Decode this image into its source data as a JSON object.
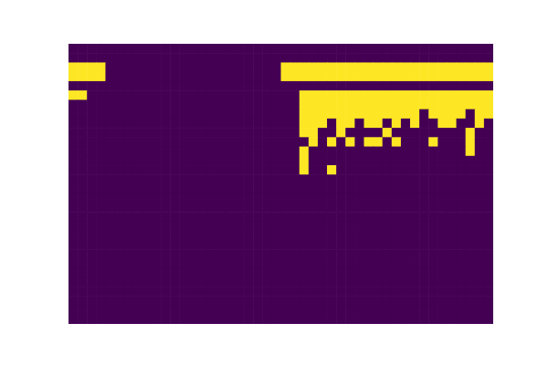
{
  "chart_data": {
    "type": "heatmap",
    "tick_labels": false,
    "zlim": [
      0,
      1
    ],
    "colors": [
      "#440154",
      "#fde725"
    ],
    "cells": [
      [
        0,
        0,
        0,
        0,
        0,
        0,
        0,
        0,
        0,
        0,
        0,
        0,
        0,
        0,
        0,
        0,
        0,
        0,
        0,
        0,
        0,
        0,
        0,
        0,
        0,
        0,
        0,
        0,
        0,
        0,
        0,
        0,
        0,
        0,
        0,
        0,
        0,
        0,
        0,
        0,
        0,
        0,
        0,
        0,
        0,
        0
      ],
      [
        0,
        0,
        0,
        0,
        0,
        0,
        0,
        0,
        0,
        0,
        0,
        0,
        0,
        0,
        0,
        0,
        0,
        0,
        0,
        0,
        0,
        0,
        0,
        0,
        0,
        0,
        0,
        0,
        0,
        0,
        0,
        0,
        0,
        0,
        0,
        0,
        0,
        0,
        0,
        0,
        0,
        0,
        0,
        0,
        0,
        0
      ],
      [
        1,
        1,
        1,
        1,
        0,
        0,
        0,
        0,
        0,
        0,
        0,
        0,
        0,
        0,
        0,
        0,
        0,
        0,
        0,
        0,
        0,
        0,
        0,
        1,
        1,
        1,
        1,
        1,
        1,
        1,
        1,
        1,
        1,
        1,
        1,
        1,
        1,
        1,
        1,
        1,
        1,
        1,
        1,
        1,
        1,
        1
      ],
      [
        1,
        1,
        1,
        1,
        0,
        0,
        0,
        0,
        0,
        0,
        0,
        0,
        0,
        0,
        0,
        0,
        0,
        0,
        0,
        0,
        0,
        0,
        0,
        1,
        1,
        1,
        1,
        1,
        1,
        1,
        1,
        1,
        1,
        1,
        1,
        1,
        1,
        1,
        1,
        1,
        1,
        1,
        1,
        1,
        1,
        1
      ],
      [
        0,
        0,
        0,
        0,
        0,
        0,
        0,
        0,
        0,
        0,
        0,
        0,
        0,
        0,
        0,
        0,
        0,
        0,
        0,
        0,
        0,
        0,
        0,
        0,
        0,
        0,
        0,
        0,
        0,
        0,
        0,
        0,
        0,
        0,
        0,
        0,
        0,
        0,
        0,
        0,
        0,
        0,
        0,
        0,
        0,
        0
      ],
      [
        1,
        1,
        0,
        0,
        0,
        0,
        0,
        0,
        0,
        0,
        0,
        0,
        0,
        0,
        0,
        0,
        0,
        0,
        0,
        0,
        0,
        0,
        0,
        0,
        0,
        1,
        1,
        1,
        1,
        1,
        1,
        1,
        1,
        1,
        1,
        1,
        1,
        1,
        1,
        1,
        1,
        1,
        1,
        1,
        1,
        1
      ],
      [
        0,
        0,
        0,
        0,
        0,
        0,
        0,
        0,
        0,
        0,
        0,
        0,
        0,
        0,
        0,
        0,
        0,
        0,
        0,
        0,
        0,
        0,
        0,
        0,
        0,
        1,
        1,
        1,
        1,
        1,
        1,
        1,
        1,
        1,
        1,
        1,
        1,
        1,
        1,
        1,
        1,
        1,
        1,
        1,
        1,
        1
      ],
      [
        0,
        0,
        0,
        0,
        0,
        0,
        0,
        0,
        0,
        0,
        0,
        0,
        0,
        0,
        0,
        0,
        0,
        0,
        0,
        0,
        0,
        0,
        0,
        0,
        0,
        1,
        1,
        1,
        1,
        1,
        1,
        1,
        1,
        1,
        1,
        1,
        1,
        1,
        0,
        1,
        1,
        1,
        1,
        0,
        1,
        1
      ],
      [
        0,
        0,
        0,
        0,
        0,
        0,
        0,
        0,
        0,
        0,
        0,
        0,
        0,
        0,
        0,
        0,
        0,
        0,
        0,
        0,
        0,
        0,
        0,
        0,
        0,
        1,
        1,
        1,
        0,
        1,
        1,
        0,
        1,
        1,
        0,
        1,
        0,
        1,
        0,
        0,
        1,
        1,
        0,
        0,
        1,
        0
      ],
      [
        0,
        0,
        0,
        0,
        0,
        0,
        0,
        0,
        0,
        0,
        0,
        0,
        0,
        0,
        0,
        0,
        0,
        0,
        0,
        0,
        0,
        0,
        0,
        0,
        0,
        1,
        1,
        0,
        0,
        1,
        0,
        0,
        0,
        0,
        1,
        0,
        0,
        0,
        0,
        0,
        0,
        0,
        0,
        1,
        0,
        0
      ],
      [
        0,
        0,
        0,
        0,
        0,
        0,
        0,
        0,
        0,
        0,
        0,
        0,
        0,
        0,
        0,
        0,
        0,
        0,
        0,
        0,
        0,
        0,
        0,
        0,
        0,
        0,
        1,
        0,
        1,
        0,
        1,
        0,
        1,
        1,
        0,
        1,
        0,
        0,
        0,
        1,
        0,
        0,
        0,
        1,
        0,
        0
      ],
      [
        0,
        0,
        0,
        0,
        0,
        0,
        0,
        0,
        0,
        0,
        0,
        0,
        0,
        0,
        0,
        0,
        0,
        0,
        0,
        0,
        0,
        0,
        0,
        0,
        0,
        1,
        0,
        0,
        0,
        0,
        0,
        0,
        0,
        0,
        0,
        0,
        0,
        0,
        0,
        0,
        0,
        0,
        0,
        1,
        0,
        0
      ],
      [
        0,
        0,
        0,
        0,
        0,
        0,
        0,
        0,
        0,
        0,
        0,
        0,
        0,
        0,
        0,
        0,
        0,
        0,
        0,
        0,
        0,
        0,
        0,
        0,
        0,
        1,
        0,
        0,
        0,
        0,
        0,
        0,
        0,
        0,
        0,
        0,
        0,
        0,
        0,
        0,
        0,
        0,
        0,
        0,
        0,
        0
      ],
      [
        0,
        0,
        0,
        0,
        0,
        0,
        0,
        0,
        0,
        0,
        0,
        0,
        0,
        0,
        0,
        0,
        0,
        0,
        0,
        0,
        0,
        0,
        0,
        0,
        0,
        1,
        0,
        0,
        1,
        0,
        0,
        0,
        0,
        0,
        0,
        0,
        0,
        0,
        0,
        0,
        0,
        0,
        0,
        0,
        0,
        0
      ],
      [
        0,
        0,
        0,
        0,
        0,
        0,
        0,
        0,
        0,
        0,
        0,
        0,
        0,
        0,
        0,
        0,
        0,
        0,
        0,
        0,
        0,
        0,
        0,
        0,
        0,
        0,
        0,
        0,
        0,
        0,
        0,
        0,
        0,
        0,
        0,
        0,
        0,
        0,
        0,
        0,
        0,
        0,
        0,
        0,
        0,
        0
      ],
      [
        0,
        0,
        0,
        0,
        0,
        0,
        0,
        0,
        0,
        0,
        0,
        0,
        0,
        0,
        0,
        0,
        0,
        0,
        0,
        0,
        0,
        0,
        0,
        0,
        0,
        0,
        0,
        0,
        0,
        0,
        0,
        0,
        0,
        0,
        0,
        0,
        0,
        0,
        0,
        0,
        0,
        0,
        0,
        0,
        0,
        0
      ],
      [
        0,
        0,
        0,
        0,
        0,
        0,
        0,
        0,
        0,
        0,
        0,
        0,
        0,
        0,
        0,
        0,
        0,
        0,
        0,
        0,
        0,
        0,
        0,
        0,
        0,
        0,
        0,
        0,
        0,
        0,
        0,
        0,
        0,
        0,
        0,
        0,
        0,
        0,
        0,
        0,
        0,
        0,
        0,
        0,
        0,
        0
      ],
      [
        0,
        0,
        0,
        0,
        0,
        0,
        0,
        0,
        0,
        0,
        0,
        0,
        0,
        0,
        0,
        0,
        0,
        0,
        0,
        0,
        0,
        0,
        0,
        0,
        0,
        0,
        0,
        0,
        0,
        0,
        0,
        0,
        0,
        0,
        0,
        0,
        0,
        0,
        0,
        0,
        0,
        0,
        0,
        0,
        0,
        0
      ],
      [
        0,
        0,
        0,
        0,
        0,
        0,
        0,
        0,
        0,
        0,
        0,
        0,
        0,
        0,
        0,
        0,
        0,
        0,
        0,
        0,
        0,
        0,
        0,
        0,
        0,
        0,
        0,
        0,
        0,
        0,
        0,
        0,
        0,
        0,
        0,
        0,
        0,
        0,
        0,
        0,
        0,
        0,
        0,
        0,
        0,
        0
      ],
      [
        0,
        0,
        0,
        0,
        0,
        0,
        0,
        0,
        0,
        0,
        0,
        0,
        0,
        0,
        0,
        0,
        0,
        0,
        0,
        0,
        0,
        0,
        0,
        0,
        0,
        0,
        0,
        0,
        0,
        0,
        0,
        0,
        0,
        0,
        0,
        0,
        0,
        0,
        0,
        0,
        0,
        0,
        0,
        0,
        0,
        0
      ],
      [
        0,
        0,
        0,
        0,
        0,
        0,
        0,
        0,
        0,
        0,
        0,
        0,
        0,
        0,
        0,
        0,
        0,
        0,
        0,
        0,
        0,
        0,
        0,
        0,
        0,
        0,
        0,
        0,
        0,
        0,
        0,
        0,
        0,
        0,
        0,
        0,
        0,
        0,
        0,
        0,
        0,
        0,
        0,
        0,
        0,
        0
      ],
      [
        0,
        0,
        0,
        0,
        0,
        0,
        0,
        0,
        0,
        0,
        0,
        0,
        0,
        0,
        0,
        0,
        0,
        0,
        0,
        0,
        0,
        0,
        0,
        0,
        0,
        0,
        0,
        0,
        0,
        0,
        0,
        0,
        0,
        0,
        0,
        0,
        0,
        0,
        0,
        0,
        0,
        0,
        0,
        0,
        0,
        0
      ],
      [
        0,
        0,
        0,
        0,
        0,
        0,
        0,
        0,
        0,
        0,
        0,
        0,
        0,
        0,
        0,
        0,
        0,
        0,
        0,
        0,
        0,
        0,
        0,
        0,
        0,
        0,
        0,
        0,
        0,
        0,
        0,
        0,
        0,
        0,
        0,
        0,
        0,
        0,
        0,
        0,
        0,
        0,
        0,
        0,
        0,
        0
      ],
      [
        0,
        0,
        0,
        0,
        0,
        0,
        0,
        0,
        0,
        0,
        0,
        0,
        0,
        0,
        0,
        0,
        0,
        0,
        0,
        0,
        0,
        0,
        0,
        0,
        0,
        0,
        0,
        0,
        0,
        0,
        0,
        0,
        0,
        0,
        0,
        0,
        0,
        0,
        0,
        0,
        0,
        0,
        0,
        0,
        0,
        0
      ],
      [
        0,
        0,
        0,
        0,
        0,
        0,
        0,
        0,
        0,
        0,
        0,
        0,
        0,
        0,
        0,
        0,
        0,
        0,
        0,
        0,
        0,
        0,
        0,
        0,
        0,
        0,
        0,
        0,
        0,
        0,
        0,
        0,
        0,
        0,
        0,
        0,
        0,
        0,
        0,
        0,
        0,
        0,
        0,
        0,
        0,
        0
      ],
      [
        0,
        0,
        0,
        0,
        0,
        0,
        0,
        0,
        0,
        0,
        0,
        0,
        0,
        0,
        0,
        0,
        0,
        0,
        0,
        0,
        0,
        0,
        0,
        0,
        0,
        0,
        0,
        0,
        0,
        0,
        0,
        0,
        0,
        0,
        0,
        0,
        0,
        0,
        0,
        0,
        0,
        0,
        0,
        0,
        0,
        0
      ],
      [
        0,
        0,
        0,
        0,
        0,
        0,
        0,
        0,
        0,
        0,
        0,
        0,
        0,
        0,
        0,
        0,
        0,
        0,
        0,
        0,
        0,
        0,
        0,
        0,
        0,
        0,
        0,
        0,
        0,
        0,
        0,
        0,
        0,
        0,
        0,
        0,
        0,
        0,
        0,
        0,
        0,
        0,
        0,
        0,
        0,
        0
      ],
      [
        0,
        0,
        0,
        0,
        0,
        0,
        0,
        0,
        0,
        0,
        0,
        0,
        0,
        0,
        0,
        0,
        0,
        0,
        0,
        0,
        0,
        0,
        0,
        0,
        0,
        0,
        0,
        0,
        0,
        0,
        0,
        0,
        0,
        0,
        0,
        0,
        0,
        0,
        0,
        0,
        0,
        0,
        0,
        0,
        0,
        0
      ],
      [
        0,
        0,
        0,
        0,
        0,
        0,
        0,
        0,
        0,
        0,
        0,
        0,
        0,
        0,
        0,
        0,
        0,
        0,
        0,
        0,
        0,
        0,
        0,
        0,
        0,
        0,
        0,
        0,
        0,
        0,
        0,
        0,
        0,
        0,
        0,
        0,
        0,
        0,
        0,
        0,
        0,
        0,
        0,
        0,
        0,
        0
      ],
      [
        0,
        0,
        0,
        0,
        0,
        0,
        0,
        0,
        0,
        0,
        0,
        0,
        0,
        0,
        0,
        0,
        0,
        0,
        0,
        0,
        0,
        0,
        0,
        0,
        0,
        0,
        0,
        0,
        0,
        0,
        0,
        0,
        0,
        0,
        0,
        0,
        0,
        0,
        0,
        0,
        0,
        0,
        0,
        0,
        0,
        0
      ]
    ]
  }
}
